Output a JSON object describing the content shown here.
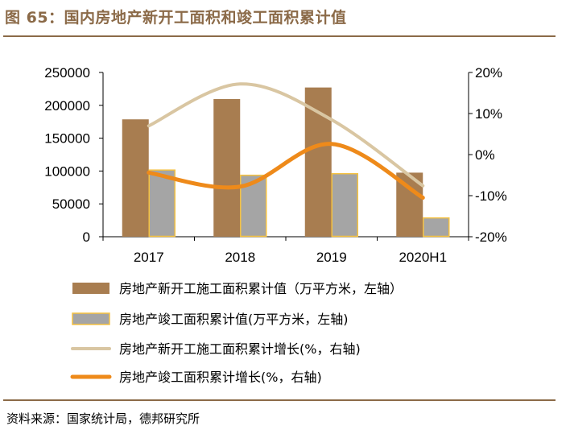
{
  "title": "图 65：国内房地产新开工面积和竣工面积累计值",
  "source": "资料来源：国家统计局，德邦研究所",
  "colors": {
    "accent": "#8b6a48",
    "bar_new": "#a87d50",
    "bar_done": "#a5a5a5",
    "bar_done_border": "#f5c242",
    "line_new": "#d9c6a2",
    "line_done": "#ee8a1a"
  },
  "chart_data": {
    "type": "bar",
    "categories": [
      "2017",
      "2018",
      "2019",
      "2020H1"
    ],
    "series": [
      {
        "name": "房地产新开工施工面积累计值（万平方米，左轴）",
        "type": "bar",
        "axis": "left",
        "values": [
          178654,
          209537,
          227154,
          97536
        ]
      },
      {
        "name": "房地产竣工面积累计值(万平方米，左轴)",
        "type": "bar",
        "axis": "left",
        "values": [
          101486,
          93550,
          95942,
          28621
        ]
      },
      {
        "name": "房地产新开工施工面积累计增长(%，右轴)",
        "type": "line",
        "axis": "right",
        "values": [
          7.0,
          17.2,
          8.5,
          -7.6
        ]
      },
      {
        "name": "房地产竣工面积累计增长(%，右轴)",
        "type": "line",
        "axis": "right",
        "values": [
          -4.4,
          -7.8,
          2.6,
          -10.5
        ]
      }
    ],
    "left_axis": {
      "min": 0,
      "max": 250000,
      "step": 50000,
      "ticks": [
        "0",
        "50000",
        "100000",
        "150000",
        "200000",
        "250000"
      ]
    },
    "right_axis": {
      "min": -20,
      "max": 20,
      "step": 10,
      "ticks": [
        "-20%",
        "-10%",
        "0%",
        "10%",
        "20%"
      ]
    },
    "legend_position": "bottom",
    "grid": false
  }
}
